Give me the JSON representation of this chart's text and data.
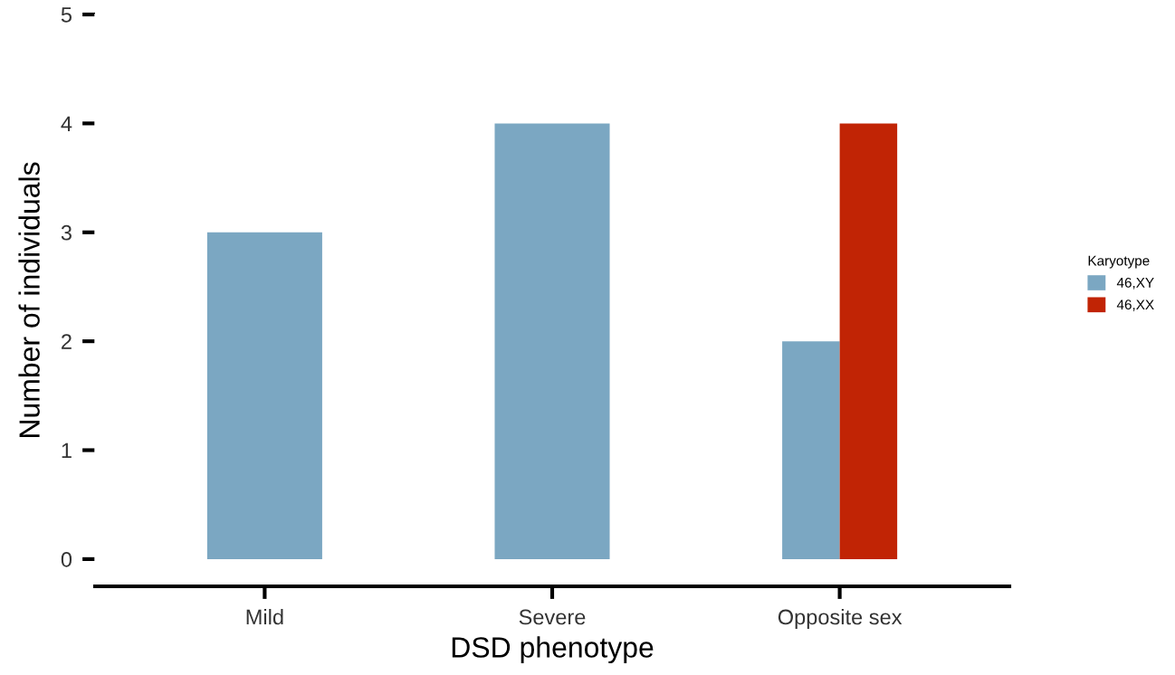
{
  "chart_data": {
    "type": "bar",
    "xlabel": "DSD phenotype",
    "ylabel": "Number of individuals",
    "legend_title": "Karyotype",
    "categories": [
      "Mild",
      "Severe",
      "Opposite sex"
    ],
    "series": [
      {
        "name": "46,XY",
        "color": "#7ba7c2",
        "values": [
          3,
          4,
          2
        ]
      },
      {
        "name": "46,XX",
        "color": "#c12405",
        "values": [
          null,
          null,
          4
        ]
      }
    ],
    "ylim": [
      -0.25,
      5
    ],
    "yticks": [
      0,
      1,
      2,
      3,
      4,
      5
    ],
    "grid": false,
    "legend": "right"
  }
}
